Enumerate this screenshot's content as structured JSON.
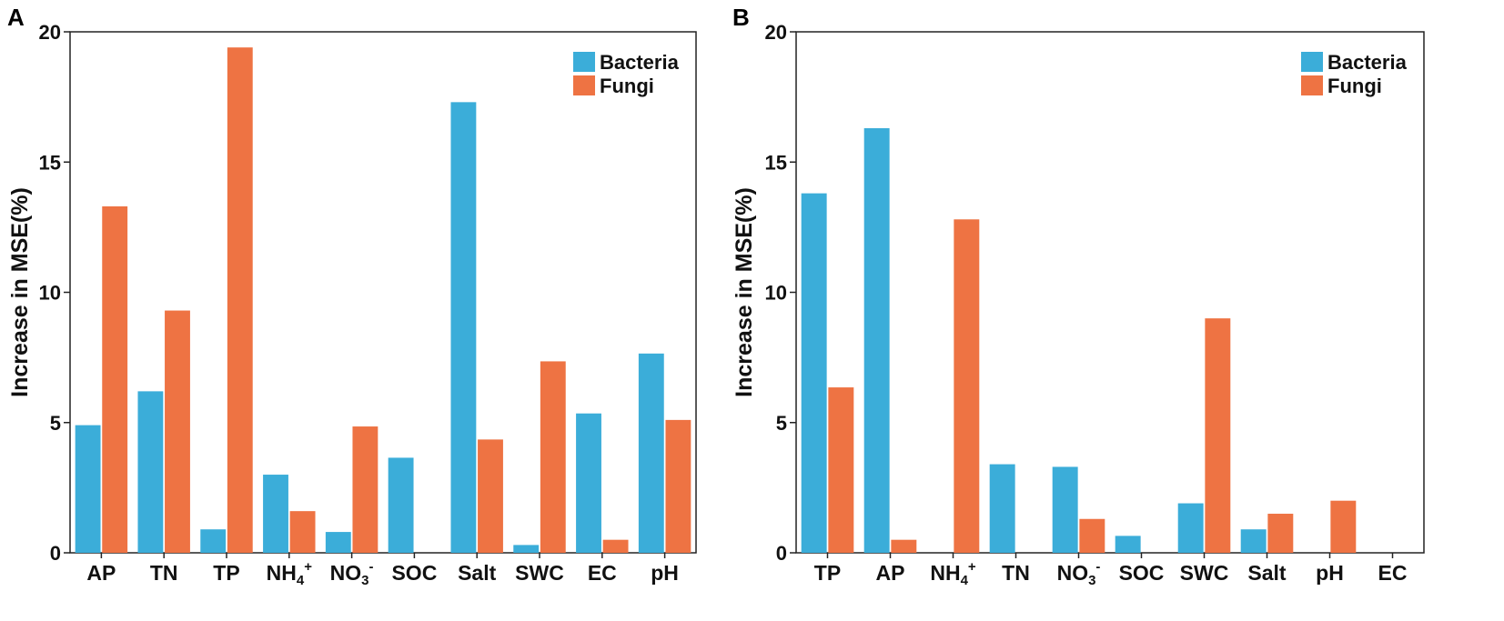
{
  "colors": {
    "bacteria": "#3badd9",
    "fungi": "#ee7343",
    "axis": "#222222"
  },
  "chart_data": [
    {
      "type": "bar",
      "panel_label": "A",
      "ylabel": "Increase in MSE(%)",
      "ylim": [
        0,
        20
      ],
      "yticks": [
        "0",
        "5",
        "10",
        "15",
        "20"
      ],
      "legend_position": "top-right",
      "categories": [
        {
          "base": "AP",
          "sup": "",
          "sub": ""
        },
        {
          "base": "TN",
          "sup": "",
          "sub": ""
        },
        {
          "base": "TP",
          "sup": "",
          "sub": ""
        },
        {
          "base": "NH",
          "sub": "4",
          "sup": "+"
        },
        {
          "base": "NO",
          "sub": "3",
          "sup": "-"
        },
        {
          "base": "SOC",
          "sup": "",
          "sub": ""
        },
        {
          "base": "Salt",
          "sup": "",
          "sub": ""
        },
        {
          "base": "SWC",
          "sup": "",
          "sub": ""
        },
        {
          "base": "EC",
          "sup": "",
          "sub": ""
        },
        {
          "base": "pH",
          "sup": "",
          "sub": ""
        }
      ],
      "series": [
        {
          "name": "Bacteria",
          "values": [
            4.9,
            6.2,
            0.9,
            3.0,
            0.8,
            3.65,
            17.3,
            0.3,
            5.35,
            7.65
          ]
        },
        {
          "name": "Fungi",
          "values": [
            13.3,
            9.3,
            19.4,
            1.6,
            4.85,
            0,
            4.35,
            7.35,
            0.5,
            5.1
          ]
        }
      ]
    },
    {
      "type": "bar",
      "panel_label": "B",
      "ylabel": "Increase in MSE(%)",
      "ylim": [
        0,
        20
      ],
      "yticks": [
        "0",
        "5",
        "10",
        "15",
        "20"
      ],
      "legend_position": "top-right",
      "categories": [
        {
          "base": "TP",
          "sup": "",
          "sub": ""
        },
        {
          "base": "AP",
          "sup": "",
          "sub": ""
        },
        {
          "base": "NH",
          "sub": "4",
          "sup": "+"
        },
        {
          "base": "TN",
          "sup": "",
          "sub": ""
        },
        {
          "base": "NO",
          "sub": "3",
          "sup": "-"
        },
        {
          "base": "SOC",
          "sup": "",
          "sub": ""
        },
        {
          "base": "SWC",
          "sup": "",
          "sub": ""
        },
        {
          "base": "Salt",
          "sup": "",
          "sub": ""
        },
        {
          "base": "pH",
          "sup": "",
          "sub": ""
        },
        {
          "base": "EC",
          "sup": "",
          "sub": ""
        }
      ],
      "series": [
        {
          "name": "Bacteria",
          "values": [
            13.8,
            16.3,
            0,
            3.4,
            3.3,
            0.65,
            1.9,
            0.9,
            0,
            0
          ]
        },
        {
          "name": "Fungi",
          "values": [
            6.35,
            0.5,
            12.8,
            0,
            1.3,
            0,
            9.0,
            1.5,
            2.0,
            0
          ]
        }
      ]
    }
  ]
}
